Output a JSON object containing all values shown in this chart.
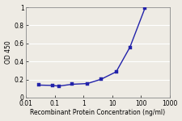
{
  "x": [
    0.027,
    0.082,
    0.137,
    0.41,
    1.37,
    4.11,
    13.7,
    41.1,
    137
  ],
  "y": [
    0.138,
    0.134,
    0.127,
    0.147,
    0.155,
    0.203,
    0.285,
    0.556,
    0.989
  ],
  "line_color": "#2222aa",
  "marker_color": "#2222aa",
  "marker": "s",
  "marker_size": 2.5,
  "xlabel": "Recombinant Protein Concentration (ng/ml)",
  "ylabel": "OD 450",
  "xlim": [
    0.01,
    1000
  ],
  "ylim": [
    0,
    1.0
  ],
  "yticks": [
    0,
    0.2,
    0.4,
    0.6,
    0.8,
    1.0
  ],
  "ytick_labels": [
    "0",
    "0.2",
    "0.4",
    "0.6",
    "0.8",
    "1"
  ],
  "xtick_labels": [
    "0.01",
    "0.1",
    "1",
    "10",
    "100",
    "1000"
  ],
  "xtick_values": [
    0.01,
    0.1,
    1,
    10,
    100,
    1000
  ],
  "plot_bg": "#eeebe4",
  "fig_bg": "#eeebe4",
  "grid_color": "#ffffff",
  "axis_fontsize": 5.5,
  "tick_fontsize": 5.5,
  "linewidth": 1.0
}
